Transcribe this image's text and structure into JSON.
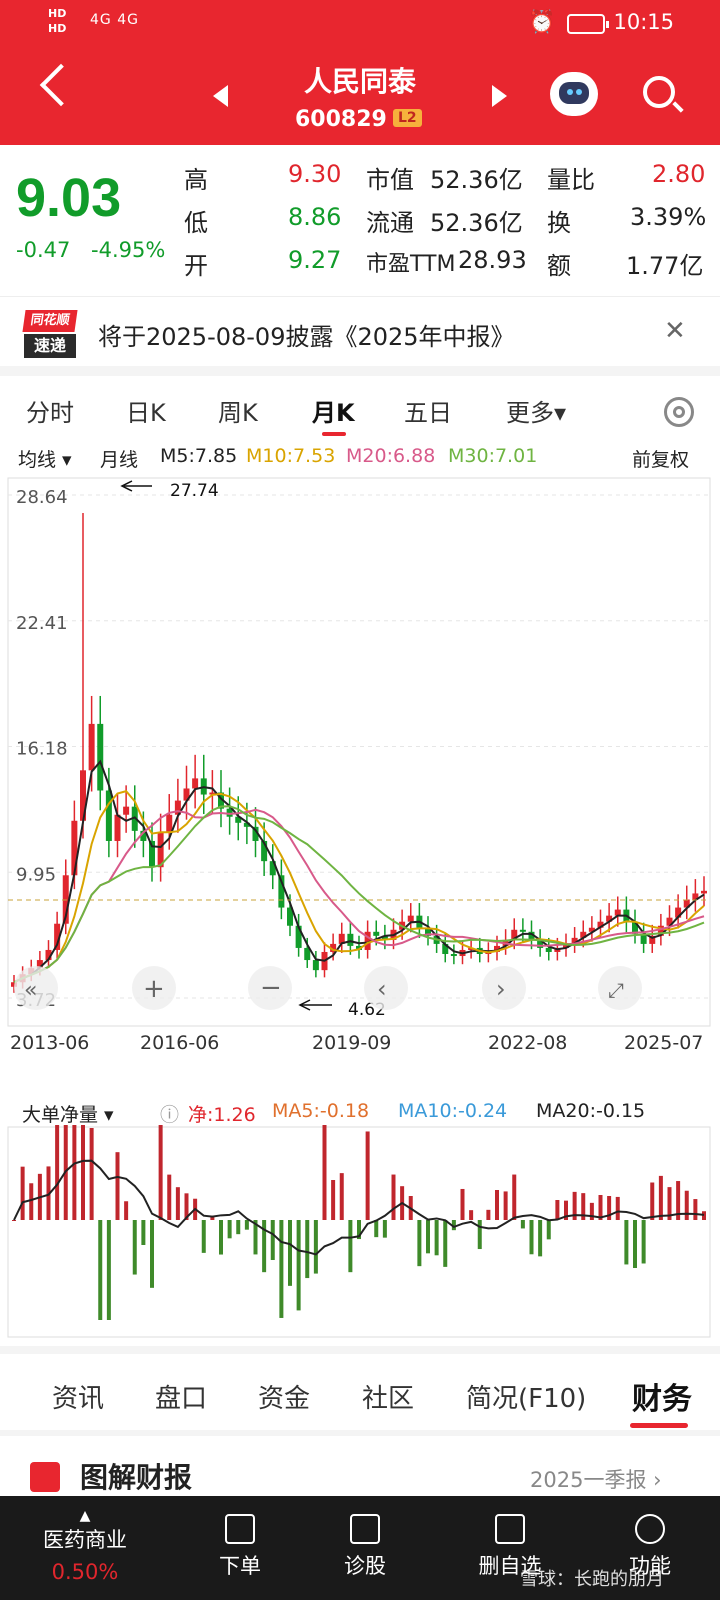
{
  "status": {
    "hd": "HD\nHD",
    "signal": "4G 4G",
    "time": "10:15"
  },
  "header": {
    "title": "人民同泰",
    "code": "600829",
    "badge": "L2"
  },
  "quote": {
    "price": "9.03",
    "change": "-0.47",
    "change_pct": "-4.95%",
    "high_label": "高",
    "high": "9.30",
    "low_label": "低",
    "low": "8.86",
    "open_label": "开",
    "open": "9.27",
    "mcap_label": "市值",
    "mcap": "52.36亿",
    "float_label": "流通",
    "float": "52.36亿",
    "pe_label": "市盈TTM",
    "pe": "28.93",
    "vol_ratio_label": "量比",
    "vol_ratio": "2.80",
    "turnover_label": "换",
    "turnover": "3.39%",
    "amount_label": "额",
    "amount": "1.77亿"
  },
  "ticker": {
    "logo_top": "同花顺",
    "logo_bottom": "速递",
    "text": "将于2025-08-09披露《2025年中报》"
  },
  "ktabs": [
    "分时",
    "日K",
    "周K",
    "月K",
    "五日",
    "更多▾"
  ],
  "ma": {
    "selector": "均线 ▾",
    "period": "月线",
    "m5": "M5:7.85",
    "m10": "M10:7.53",
    "m20": "M20:6.88",
    "m30": "M30:7.01",
    "adjust": "前复权"
  },
  "chart_data": {
    "type": "candlestick",
    "title": "月K",
    "y_ticks": [
      "28.64",
      "22.41",
      "16.18",
      "9.95",
      "3.72"
    ],
    "x_ticks": [
      "2013-06",
      "2016-06",
      "2019-09",
      "2022-08",
      "2025-07"
    ],
    "annotations": [
      "27.74",
      "4.62"
    ],
    "ylim": [
      3.72,
      28.64
    ],
    "close_series": [
      4.5,
      4.9,
      5.2,
      5.6,
      6.1,
      7.4,
      9.8,
      12.5,
      15.0,
      17.3,
      14.0,
      11.5,
      12.8,
      13.2,
      12.0,
      11.5,
      10.2,
      11.9,
      12.8,
      13.5,
      14.1,
      14.6,
      13.8,
      13.9,
      13.1,
      12.7,
      12.4,
      12.2,
      11.5,
      10.5,
      9.8,
      8.2,
      7.3,
      6.2,
      5.6,
      5.1,
      6.0,
      6.4,
      6.9,
      6.3,
      6.1,
      7.0,
      6.8,
      6.6,
      7.1,
      7.5,
      7.8,
      7.2,
      6.8,
      6.4,
      5.9,
      5.8,
      6.1,
      6.2,
      5.9,
      6.0,
      6.3,
      6.6,
      7.1,
      7.0,
      6.6,
      6.2,
      6.0,
      6.2,
      6.4,
      6.7,
      7.0,
      7.2,
      7.5,
      7.8,
      8.1,
      7.5,
      6.9,
      6.4,
      6.8,
      7.3,
      7.7,
      8.2,
      8.6,
      8.9,
      9.03
    ]
  },
  "flow": {
    "selector": "大单净量 ▾",
    "net": "净:1.26",
    "ma5": "MA5:-0.18",
    "ma10": "MA10:-0.24",
    "ma20": "MA20:-0.15"
  },
  "bottom_tabs": [
    "资讯",
    "盘口",
    "资金",
    "社区",
    "简况(F10)",
    "财务"
  ],
  "finance": {
    "title": "图解财报",
    "period": "2025一季报 ›"
  },
  "nav": [
    {
      "label": "医药商业",
      "sub": "0.50%"
    },
    {
      "label": "下单"
    },
    {
      "label": "诊股"
    },
    {
      "label": "删自选"
    },
    {
      "label": "功能"
    }
  ],
  "watermark": "雪球：长跑的朋月",
  "colors": {
    "red": "#e0262d",
    "green": "#119c2a",
    "brand": "#e8262f",
    "m5": "#222222",
    "m10": "#d9a400",
    "m20": "#d85a8a",
    "m30": "#6fb442"
  }
}
